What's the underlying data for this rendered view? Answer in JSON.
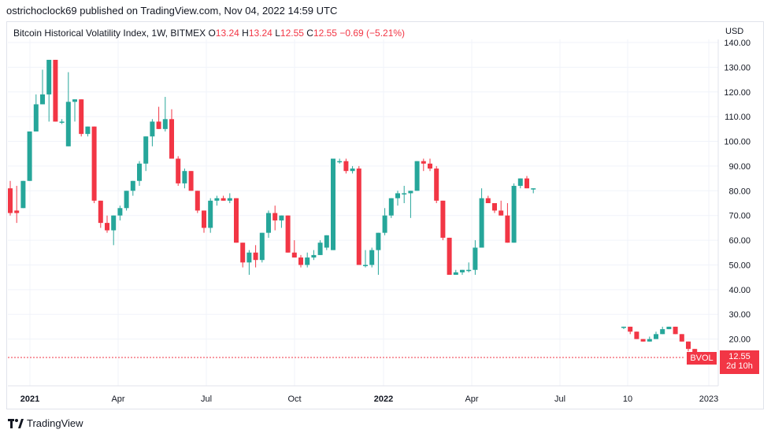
{
  "header": {
    "published": "ostrichoclock69 published on TradingView.com, Nov 04, 2022 14:59 UTC"
  },
  "legend": {
    "title": "Bitcoin Historical Volatility Index, 1W, BITMEX",
    "o_label": "O",
    "o_value": "13.24",
    "h_label": "H",
    "h_value": "13.24",
    "l_label": "L",
    "l_value": "12.55",
    "c_label": "C",
    "c_value": "12.55",
    "change": "−0.69 (−5.21%)"
  },
  "currency": "USD",
  "price_tag": {
    "symbol": "BVOL",
    "price": "12.55",
    "countdown": "2d 10h"
  },
  "footer": {
    "brand": "TradingView"
  },
  "colors": {
    "up": "#26a69a",
    "down": "#f23645",
    "grid": "#f0f3fa",
    "last_line": "#f23645"
  },
  "chart_data": {
    "type": "candlestick",
    "title": "Bitcoin Historical Volatility Index, 1W, BITMEX",
    "ylim": [
      10,
      140
    ],
    "y_ticks": [
      "140.00",
      "130.00",
      "120.00",
      "110.00",
      "100.00",
      "90.00",
      "80.00",
      "70.00",
      "60.00",
      "50.00",
      "40.00",
      "30.00",
      "20.00"
    ],
    "x_ticks": [
      "2021",
      "Apr",
      "Jul",
      "Oct",
      "2022",
      "Apr",
      "Jul",
      "10",
      "2023"
    ],
    "last_value": 12.55,
    "candles": [
      [
        81,
        84,
        70,
        71
      ],
      [
        72,
        82,
        67,
        71
      ],
      [
        73,
        84,
        73,
        84
      ],
      [
        84,
        104,
        84,
        104
      ],
      [
        104,
        119,
        104,
        115
      ],
      [
        115,
        129,
        115,
        119
      ],
      [
        119,
        133,
        108,
        133
      ],
      [
        133,
        133,
        108,
        108
      ],
      [
        108,
        109,
        107,
        108
      ],
      [
        98,
        128,
        98,
        116
      ],
      [
        116,
        117,
        108,
        117
      ],
      [
        117,
        117,
        102,
        103
      ],
      [
        103,
        106,
        102,
        106
      ],
      [
        106,
        106,
        75,
        76
      ],
      [
        76,
        76,
        65,
        67
      ],
      [
        67,
        70,
        63,
        64
      ],
      [
        64,
        68,
        58,
        70
      ],
      [
        70,
        74,
        68,
        73
      ],
      [
        73,
        80,
        72,
        80
      ],
      [
        80,
        84,
        78,
        84
      ],
      [
        84,
        92,
        82,
        91
      ],
      [
        91,
        101,
        88,
        102
      ],
      [
        102,
        109,
        98,
        108
      ],
      [
        108,
        114,
        106,
        105
      ],
      [
        105,
        118,
        104,
        109
      ],
      [
        109,
        113,
        93,
        93
      ],
      [
        93,
        94,
        82,
        83
      ],
      [
        83,
        89,
        81,
        88
      ],
      [
        88,
        88,
        81,
        80
      ],
      [
        80,
        80,
        71,
        72
      ],
      [
        72,
        72,
        63,
        65
      ],
      [
        65,
        77,
        63,
        76
      ],
      [
        76,
        78,
        74,
        77
      ],
      [
        77,
        78,
        76,
        76
      ],
      [
        76,
        79,
        75,
        77
      ],
      [
        77,
        77,
        63,
        59
      ],
      [
        59,
        59,
        49,
        51
      ],
      [
        51,
        56,
        46,
        55
      ],
      [
        55,
        58,
        49,
        52
      ],
      [
        52,
        60,
        51,
        63
      ],
      [
        63,
        72,
        61,
        71
      ],
      [
        71,
        74,
        64,
        68
      ],
      [
        68,
        70,
        65,
        70
      ],
      [
        70,
        70,
        57,
        55
      ],
      [
        55,
        60,
        53,
        53
      ],
      [
        53,
        54,
        49,
        50
      ],
      [
        50,
        55,
        49,
        53
      ],
      [
        53,
        56,
        52,
        54
      ],
      [
        54,
        60,
        56,
        59
      ],
      [
        57,
        61,
        56,
        62
      ],
      [
        56,
        93,
        56,
        93
      ],
      [
        92,
        93,
        91,
        92
      ],
      [
        92,
        93,
        87,
        88
      ],
      [
        88,
        90,
        87,
        89
      ],
      [
        89,
        90,
        50,
        50
      ],
      [
        50,
        56,
        49,
        50
      ],
      [
        50,
        57,
        49,
        56
      ],
      [
        56,
        62,
        46,
        63
      ],
      [
        63,
        73,
        62,
        70
      ],
      [
        70,
        77,
        69,
        77
      ],
      [
        77,
        80,
        74,
        79
      ],
      [
        79,
        82,
        75,
        79
      ],
      [
        79,
        79,
        69,
        80
      ],
      [
        80,
        92,
        80,
        92
      ],
      [
        92,
        93,
        88,
        91
      ],
      [
        91,
        93,
        88,
        89
      ],
      [
        89,
        90,
        75,
        76
      ],
      [
        76,
        76,
        60,
        61
      ],
      [
        61,
        61,
        46,
        46
      ],
      [
        46,
        48,
        46,
        47
      ],
      [
        47,
        48,
        46,
        48
      ],
      [
        48,
        51,
        47,
        48
      ],
      [
        48,
        60,
        46,
        57
      ],
      [
        57,
        81,
        57,
        77
      ],
      [
        77,
        78,
        75,
        75
      ],
      [
        75,
        74,
        71,
        72
      ],
      [
        72,
        76,
        70,
        70
      ],
      [
        70,
        75,
        59,
        59
      ],
      [
        59,
        83,
        59,
        82
      ],
      [
        82,
        85,
        81,
        85
      ],
      [
        85,
        86,
        81,
        81
      ],
      [
        81,
        81,
        79,
        81
      ],
      null,
      null,
      null,
      null,
      null,
      null,
      null,
      null,
      null,
      null,
      null,
      null,
      null,
      [
        25,
        25,
        24,
        25
      ],
      [
        25,
        25,
        22,
        23
      ],
      [
        23,
        23,
        20,
        20
      ],
      [
        20,
        20,
        19,
        19
      ],
      [
        19,
        21,
        19,
        20
      ],
      [
        20,
        23,
        20,
        22
      ],
      [
        22,
        25,
        22,
        24
      ],
      [
        24,
        25,
        24,
        25
      ],
      [
        25,
        25,
        22,
        22
      ],
      [
        22,
        22,
        19,
        19
      ],
      [
        19,
        19,
        15,
        16
      ],
      [
        16,
        15,
        13,
        13
      ],
      [
        13.24,
        13.24,
        12.55,
        12.55
      ]
    ]
  }
}
